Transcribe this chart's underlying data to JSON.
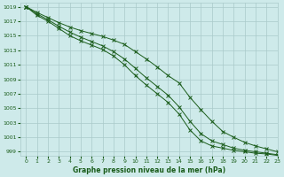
{
  "title": "",
  "xlabel": "Graphe pression niveau de la mer (hPa)",
  "ylabel": "",
  "bg_color": "#ceeaea",
  "grid_color": "#aacaca",
  "line_color": "#1a5c1a",
  "xlim": [
    -0.5,
    23
  ],
  "ylim": [
    998.5,
    1019.5
  ],
  "yticks": [
    999,
    1001,
    1003,
    1005,
    1007,
    1009,
    1011,
    1013,
    1015,
    1017,
    1019
  ],
  "xticks": [
    0,
    1,
    2,
    3,
    4,
    5,
    6,
    7,
    8,
    9,
    10,
    11,
    12,
    13,
    14,
    15,
    16,
    17,
    18,
    19,
    20,
    21,
    22,
    23
  ],
  "line1_x": [
    0,
    1,
    2,
    3,
    4,
    5,
    6,
    7,
    8,
    9,
    10,
    11,
    12,
    13,
    14,
    15,
    16,
    17,
    18,
    19,
    20,
    21,
    22,
    23
  ],
  "line1_y": [
    1019.0,
    1018.2,
    1017.5,
    1016.8,
    1016.2,
    1015.7,
    1015.3,
    1014.9,
    1014.4,
    1013.8,
    1012.8,
    1011.8,
    1010.7,
    1009.5,
    1008.5,
    1006.5,
    1004.8,
    1003.2,
    1001.8,
    1001.0,
    1000.3,
    999.8,
    999.4,
    999.0
  ],
  "line2_x": [
    0,
    1,
    2,
    3,
    4,
    5,
    6,
    7,
    8,
    9,
    10,
    11,
    12,
    13,
    14,
    15,
    16,
    17,
    18,
    19,
    20,
    21,
    22,
    23
  ],
  "line2_y": [
    1019.0,
    1018.0,
    1017.2,
    1016.3,
    1015.5,
    1014.8,
    1014.2,
    1013.6,
    1012.8,
    1011.8,
    1010.5,
    1009.2,
    1008.0,
    1006.8,
    1005.2,
    1003.2,
    1001.5,
    1000.5,
    1000.0,
    999.5,
    999.2,
    999.0,
    998.8,
    998.6
  ],
  "line3_x": [
    0,
    1,
    2,
    3,
    4,
    5,
    6,
    7,
    8,
    9,
    10,
    11,
    12,
    13,
    14,
    15,
    16,
    17,
    18,
    19,
    20,
    21,
    22,
    23
  ],
  "line3_y": [
    1019.0,
    1017.8,
    1017.0,
    1016.0,
    1015.0,
    1014.3,
    1013.7,
    1013.1,
    1012.2,
    1011.0,
    1009.5,
    1008.2,
    1007.0,
    1005.8,
    1004.2,
    1002.0,
    1000.5,
    999.8,
    999.5,
    999.2,
    999.0,
    998.8,
    998.7,
    998.5
  ]
}
